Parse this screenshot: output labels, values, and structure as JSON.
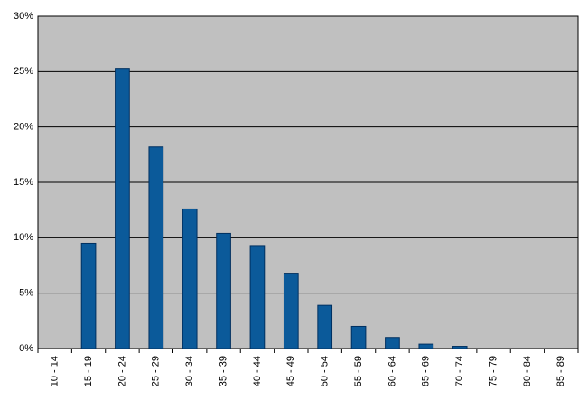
{
  "chart_data": {
    "type": "bar",
    "categories": [
      "10 - 14",
      "15 - 19",
      "20 - 24",
      "25 - 29",
      "30 - 34",
      "35 - 39",
      "40 - 44",
      "45 - 49",
      "50 - 54",
      "55 - 59",
      "60 - 64",
      "65 - 69",
      "70 - 74",
      "75 - 79",
      "80 - 84",
      "85 - 89"
    ],
    "values": [
      0,
      9.5,
      25.3,
      18.2,
      12.6,
      10.4,
      9.3,
      6.8,
      3.9,
      2.0,
      1.0,
      0.4,
      0.2,
      0,
      0,
      0
    ],
    "color": "#0b5a9a",
    "ylim": [
      0,
      30
    ],
    "yticks": [
      {
        "value": 0,
        "label": "0%"
      },
      {
        "value": 5,
        "label": "5%"
      },
      {
        "value": 10,
        "label": "10%"
      },
      {
        "value": 15,
        "label": "15%"
      },
      {
        "value": 20,
        "label": "20%"
      },
      {
        "value": 25,
        "label": "25%"
      },
      {
        "value": 30,
        "label": "30%"
      }
    ],
    "grid": true
  }
}
